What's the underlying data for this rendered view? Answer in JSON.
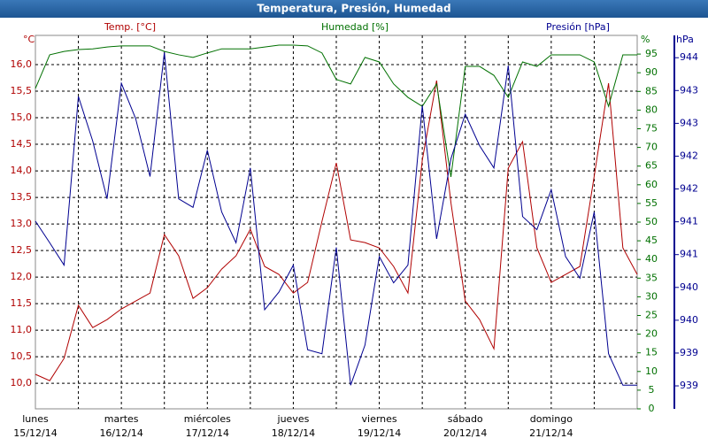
{
  "chart_data": {
    "type": "line",
    "title": "Temperatura, Presión, Humedad",
    "y_unit": "°C",
    "y2_unit": "%",
    "y3_unit": "hPa",
    "x": [
      0,
      4,
      8,
      12,
      16,
      20,
      24,
      28,
      32,
      36,
      40,
      44,
      48,
      52,
      56,
      60,
      64,
      68,
      72,
      76,
      80,
      84,
      88,
      92,
      96,
      100,
      104,
      108,
      112,
      116,
      120,
      124,
      128,
      132,
      136,
      140,
      144,
      148,
      152,
      156,
      160,
      164,
      168
    ],
    "xlim": [
      0,
      168
    ],
    "xticks": [
      {
        "value": 0,
        "label": "lunes",
        "date": "15/12/14"
      },
      {
        "value": 24,
        "label": "martes",
        "date": "16/12/14"
      },
      {
        "value": 48,
        "label": "miércoles",
        "date": "17/12/14"
      },
      {
        "value": 72,
        "label": "jueves",
        "date": "18/12/14"
      },
      {
        "value": 96,
        "label": "viernes",
        "date": "19/12/14"
      },
      {
        "value": 120,
        "label": "sábado",
        "date": "20/12/14"
      },
      {
        "value": 144,
        "label": "domingo",
        "date": "21/12/14"
      }
    ],
    "xminorticks": [
      12,
      36,
      60,
      84,
      108,
      132,
      156
    ],
    "ylim": [
      9.52,
      16.55
    ],
    "yticks": [
      {
        "value": 10,
        "label": "10,0"
      },
      {
        "value": 10.5,
        "label": "10,5"
      },
      {
        "value": 11,
        "label": "11,0"
      },
      {
        "value": 11.5,
        "label": "11,5"
      },
      {
        "value": 12,
        "label": "12,0"
      },
      {
        "value": 12.5,
        "label": "12,5"
      },
      {
        "value": 13,
        "label": "13,0"
      },
      {
        "value": 13.5,
        "label": "13,5"
      },
      {
        "value": 14,
        "label": "14,0"
      },
      {
        "value": 14.5,
        "label": "14,5"
      },
      {
        "value": 15,
        "label": "15,0"
      },
      {
        "value": 15.5,
        "label": "15,5"
      },
      {
        "value": 16,
        "label": "16,0"
      }
    ],
    "y2lim": [
      0,
      100
    ],
    "y2ticks": [
      0,
      5,
      10,
      15,
      20,
      25,
      30,
      35,
      40,
      45,
      50,
      55,
      60,
      65,
      70,
      75,
      80,
      85,
      90,
      95
    ],
    "y3lim": [
      938.55,
      944.24
    ],
    "y3ticks": [
      {
        "value": 938.9,
        "label": "939"
      },
      {
        "value": 939.4,
        "label": "939"
      },
      {
        "value": 939.9,
        "label": "940"
      },
      {
        "value": 940.4,
        "label": "940"
      },
      {
        "value": 940.9,
        "label": "941"
      },
      {
        "value": 941.4,
        "label": "941"
      },
      {
        "value": 941.9,
        "label": "942"
      },
      {
        "value": 942.4,
        "label": "942"
      },
      {
        "value": 942.9,
        "label": "943"
      },
      {
        "value": 943.4,
        "label": "943"
      },
      {
        "value": 943.9,
        "label": "944"
      }
    ],
    "grid": true,
    "series": [
      {
        "name": "Temp. [°C]",
        "color": "#b00000",
        "axis": "y",
        "values": [
          10.17,
          10.05,
          10.47,
          11.47,
          11.05,
          11.2,
          11.4,
          11.55,
          11.7,
          12.8,
          12.4,
          11.6,
          11.8,
          12.15,
          12.4,
          12.9,
          12.2,
          12.05,
          11.7,
          11.9,
          13.05,
          14.15,
          12.7,
          12.65,
          12.55,
          12.2,
          11.7,
          14.2,
          15.7,
          13.4,
          11.55,
          11.2,
          10.65,
          14.05,
          14.55,
          12.55,
          11.9,
          12.05,
          12.2,
          13.9,
          15.65,
          12.55,
          12.05
        ]
      },
      {
        "name": "Humedad [%]",
        "color": "#007000",
        "axis": "y2",
        "values": [
          85.8,
          94.8,
          95.7,
          96.2,
          96.4,
          96.9,
          97.2,
          97.2,
          97.2,
          95.7,
          94.8,
          94.1,
          95.3,
          96.4,
          96.4,
          96.4,
          96.9,
          97.4,
          97.4,
          97.2,
          95.3,
          88.2,
          87,
          94.1,
          92.9,
          87,
          83.4,
          81,
          87,
          62.1,
          91.7,
          91.7,
          89.3,
          83.4,
          92.9,
          91.7,
          94.8,
          94.8,
          94.8,
          92.9,
          81,
          94.8,
          94.8
        ]
      },
      {
        "name": "Presión [hPa]",
        "color": "#000090",
        "axis": "y3",
        "values": [
          941.41,
          941.08,
          940.74,
          943.31,
          942.63,
          941.75,
          943.51,
          942.97,
          942.09,
          943.98,
          941.75,
          941.62,
          942.49,
          941.55,
          941.08,
          942.22,
          940.06,
          940.33,
          940.74,
          939.45,
          939.39,
          941.01,
          938.91,
          939.52,
          940.87,
          940.47,
          940.74,
          943.17,
          941.14,
          942.36,
          943.04,
          942.56,
          942.22,
          943.78,
          941.48,
          941.28,
          941.89,
          940.87,
          940.54,
          941.55,
          939.39,
          938.91,
          938.91
        ]
      }
    ]
  }
}
